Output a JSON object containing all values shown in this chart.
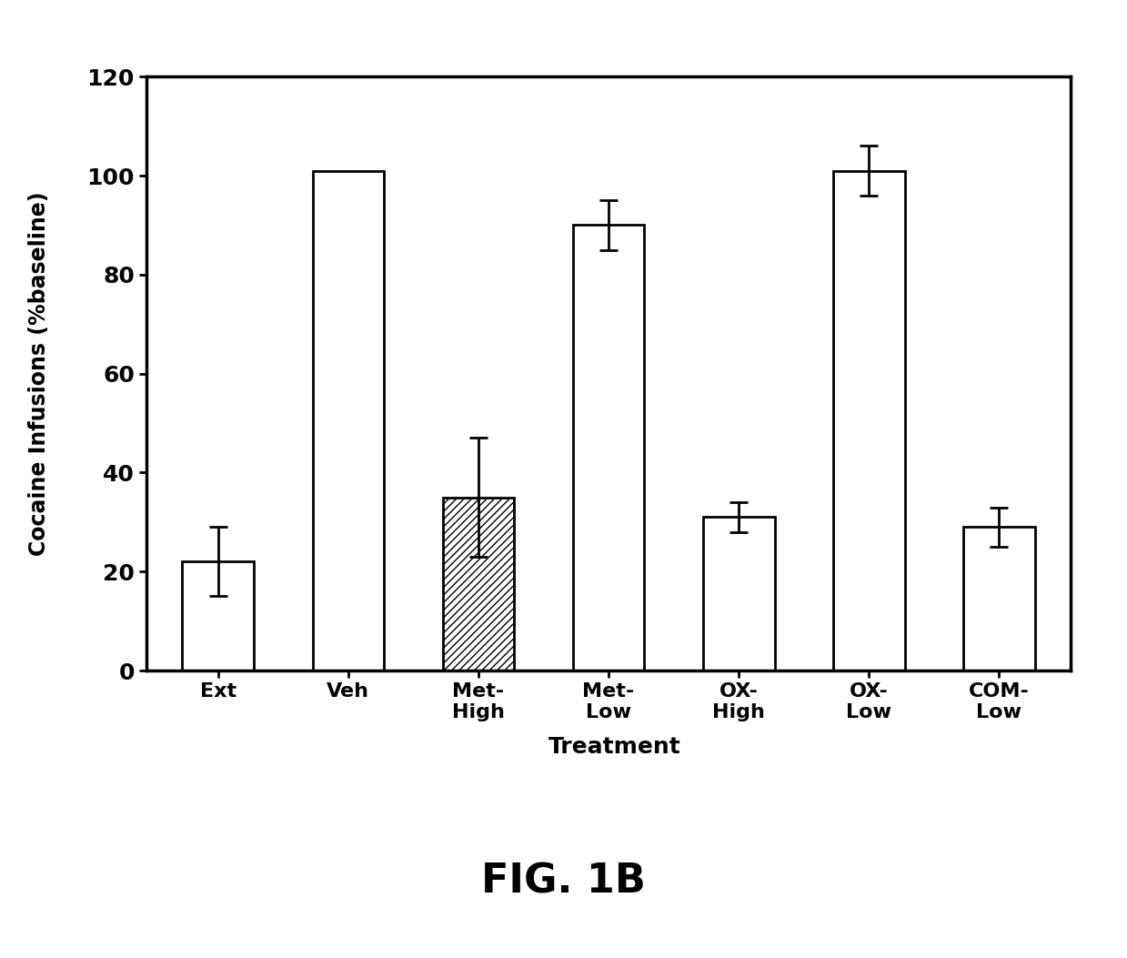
{
  "categories": [
    "Ext",
    "Veh",
    "Met-\nHigh",
    "Met-\nLow",
    "OX-\nHigh",
    "OX-\nLow",
    "COM-\nLow"
  ],
  "values": [
    22,
    101,
    35,
    90,
    31,
    101,
    29
  ],
  "errors": [
    7,
    0,
    12,
    5,
    3,
    5,
    4
  ],
  "hatched": [
    false,
    false,
    true,
    false,
    false,
    false,
    false
  ],
  "bar_color": "#ffffff",
  "hatch_pattern": "////",
  "edge_color": "#000000",
  "ylabel": "Cocaine Infusions (%baseline)",
  "xlabel": "Treatment",
  "title": "FIG. 1B",
  "ylim": [
    0,
    120
  ],
  "yticks": [
    0,
    20,
    40,
    60,
    80,
    100,
    120
  ],
  "figsize": [
    12.39,
    10.53
  ],
  "dpi": 100,
  "bar_width": 0.55,
  "background_color": "#ffffff",
  "fig_bg_color": "#e8e8e8"
}
